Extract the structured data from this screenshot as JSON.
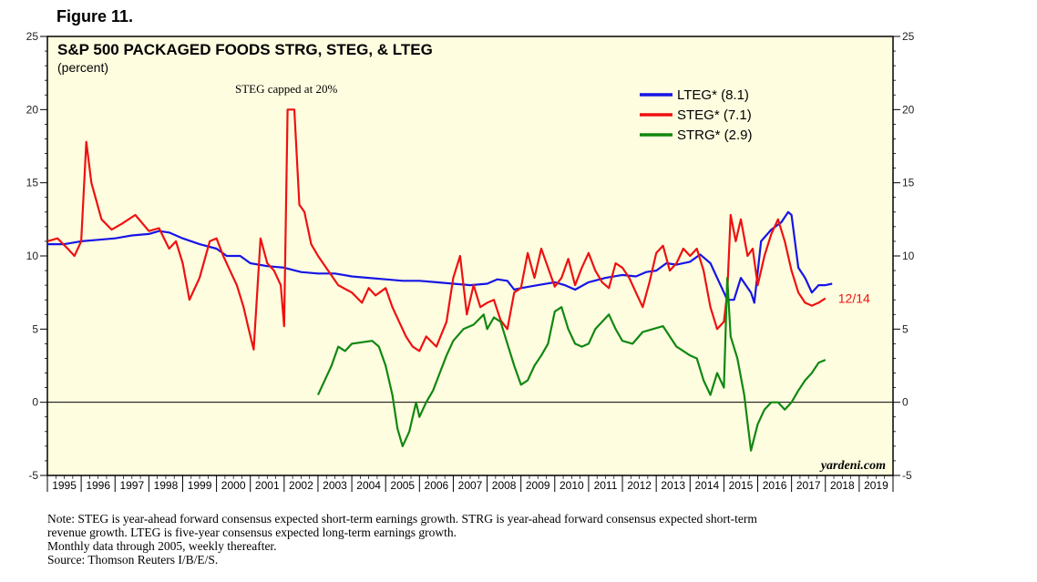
{
  "figure_label": "Figure 11.",
  "notes": [
    "Note: STEG is year-ahead forward consensus expected short-term earnings growth. STRG is year-ahead forward consensus expected short-term",
    "revenue growth. LTEG is five-year consensus expected long-term earnings growth.",
    "Monthly data through 2005, weekly thereafter.",
    "Source: Thomson Reuters I/B/E/S."
  ],
  "chart_data": {
    "type": "line",
    "title": "S&P 500 PACKAGED FOODS STRG, STEG, & LTEG",
    "subtitle": "(percent)",
    "annotation": "STEG capped at 20%",
    "watermark": "yardeni.com",
    "end_label": "12/14",
    "ylim": [
      -5,
      25
    ],
    "yticks": [
      -5,
      0,
      5,
      10,
      15,
      20,
      25
    ],
    "xlim": [
      1995,
      2020
    ],
    "xtick_labels": [
      "1995",
      "1996",
      "1997",
      "1998",
      "1999",
      "2000",
      "2001",
      "2002",
      "2003",
      "2004",
      "2005",
      "2006",
      "2007",
      "2008",
      "2009",
      "2010",
      "2011",
      "2012",
      "2013",
      "2014",
      "2015",
      "2016",
      "2017",
      "2018",
      "2019"
    ],
    "legend_position": "top-right",
    "colors": {
      "lteg": "#1515e6",
      "steg": "#ee1111",
      "strg": "#118811",
      "background": "#fffde0"
    },
    "series": [
      {
        "key": "lteg",
        "name": "LTEG* (8.1)",
        "color": "#1515e6",
        "points": [
          [
            1995.0,
            10.8
          ],
          [
            1995.5,
            10.8
          ],
          [
            1996.0,
            11.0
          ],
          [
            1996.5,
            11.1
          ],
          [
            1997.0,
            11.2
          ],
          [
            1997.5,
            11.4
          ],
          [
            1998.0,
            11.5
          ],
          [
            1998.3,
            11.7
          ],
          [
            1998.6,
            11.6
          ],
          [
            1999.0,
            11.2
          ],
          [
            1999.5,
            10.8
          ],
          [
            2000.0,
            10.5
          ],
          [
            2000.3,
            10.0
          ],
          [
            2000.7,
            10.0
          ],
          [
            2001.0,
            9.5
          ],
          [
            2001.5,
            9.3
          ],
          [
            2002.0,
            9.2
          ],
          [
            2002.5,
            8.9
          ],
          [
            2003.0,
            8.8
          ],
          [
            2003.5,
            8.8
          ],
          [
            2004.0,
            8.6
          ],
          [
            2004.5,
            8.5
          ],
          [
            2005.0,
            8.4
          ],
          [
            2005.5,
            8.3
          ],
          [
            2006.0,
            8.3
          ],
          [
            2006.5,
            8.2
          ],
          [
            2007.0,
            8.1
          ],
          [
            2007.5,
            8.0
          ],
          [
            2008.0,
            8.1
          ],
          [
            2008.3,
            8.4
          ],
          [
            2008.6,
            8.3
          ],
          [
            2008.8,
            7.7
          ],
          [
            2009.0,
            7.8
          ],
          [
            2009.5,
            8.0
          ],
          [
            2010.0,
            8.2
          ],
          [
            2010.3,
            8.0
          ],
          [
            2010.6,
            7.7
          ],
          [
            2011.0,
            8.2
          ],
          [
            2011.5,
            8.5
          ],
          [
            2012.0,
            8.7
          ],
          [
            2012.4,
            8.6
          ],
          [
            2012.7,
            8.9
          ],
          [
            2013.0,
            9.0
          ],
          [
            2013.3,
            9.5
          ],
          [
            2013.6,
            9.4
          ],
          [
            2014.0,
            9.6
          ],
          [
            2014.3,
            10.1
          ],
          [
            2014.6,
            9.5
          ],
          [
            2014.9,
            8.0
          ],
          [
            2015.1,
            7.0
          ],
          [
            2015.3,
            7.0
          ],
          [
            2015.5,
            8.5
          ],
          [
            2015.8,
            7.5
          ],
          [
            2015.9,
            6.8
          ],
          [
            2016.1,
            11.0
          ],
          [
            2016.4,
            11.8
          ],
          [
            2016.7,
            12.3
          ],
          [
            2016.9,
            13.0
          ],
          [
            2017.0,
            12.8
          ],
          [
            2017.2,
            9.2
          ],
          [
            2017.4,
            8.5
          ],
          [
            2017.6,
            7.5
          ],
          [
            2017.8,
            8.0
          ],
          [
            2018.0,
            8.0
          ],
          [
            2018.2,
            8.1
          ]
        ]
      },
      {
        "key": "steg",
        "name": "STEG* (7.1)",
        "color": "#ee1111",
        "points": [
          [
            1995.0,
            11.0
          ],
          [
            1995.3,
            11.2
          ],
          [
            1995.6,
            10.5
          ],
          [
            1995.8,
            10.0
          ],
          [
            1996.0,
            11.0
          ],
          [
            1996.15,
            17.8
          ],
          [
            1996.3,
            15.0
          ],
          [
            1996.6,
            12.5
          ],
          [
            1996.9,
            11.8
          ],
          [
            1997.2,
            12.2
          ],
          [
            1997.6,
            12.8
          ],
          [
            1998.0,
            11.7
          ],
          [
            1998.3,
            11.9
          ],
          [
            1998.6,
            10.5
          ],
          [
            1998.8,
            11.0
          ],
          [
            1999.0,
            9.5
          ],
          [
            1999.2,
            7.0
          ],
          [
            1999.5,
            8.5
          ],
          [
            1999.8,
            11.0
          ],
          [
            2000.0,
            11.2
          ],
          [
            2000.2,
            10.0
          ],
          [
            2000.4,
            9.0
          ],
          [
            2000.6,
            8.0
          ],
          [
            2000.8,
            6.5
          ],
          [
            2000.95,
            5.0
          ],
          [
            2001.1,
            3.6
          ],
          [
            2001.3,
            11.2
          ],
          [
            2001.5,
            9.5
          ],
          [
            2001.7,
            9.0
          ],
          [
            2001.9,
            8.0
          ],
          [
            2002.0,
            5.2
          ],
          [
            2002.1,
            20.0
          ],
          [
            2002.3,
            20.0
          ],
          [
            2002.45,
            13.5
          ],
          [
            2002.6,
            13.0
          ],
          [
            2002.8,
            10.8
          ],
          [
            2003.0,
            10.0
          ],
          [
            2003.3,
            9.0
          ],
          [
            2003.6,
            8.0
          ],
          [
            2004.0,
            7.5
          ],
          [
            2004.3,
            6.8
          ],
          [
            2004.5,
            7.8
          ],
          [
            2004.7,
            7.3
          ],
          [
            2005.0,
            7.8
          ],
          [
            2005.2,
            6.5
          ],
          [
            2005.4,
            5.5
          ],
          [
            2005.6,
            4.5
          ],
          [
            2005.8,
            3.8
          ],
          [
            2006.0,
            3.5
          ],
          [
            2006.2,
            4.5
          ],
          [
            2006.5,
            3.8
          ],
          [
            2006.8,
            5.5
          ],
          [
            2007.0,
            8.5
          ],
          [
            2007.2,
            10.0
          ],
          [
            2007.4,
            6.0
          ],
          [
            2007.6,
            8.0
          ],
          [
            2007.8,
            6.5
          ],
          [
            2008.0,
            6.8
          ],
          [
            2008.2,
            7.0
          ],
          [
            2008.4,
            5.6
          ],
          [
            2008.6,
            5.0
          ],
          [
            2008.8,
            7.5
          ],
          [
            2009.0,
            7.8
          ],
          [
            2009.2,
            10.2
          ],
          [
            2009.4,
            8.5
          ],
          [
            2009.6,
            10.5
          ],
          [
            2009.8,
            9.2
          ],
          [
            2010.0,
            7.9
          ],
          [
            2010.2,
            8.5
          ],
          [
            2010.4,
            9.8
          ],
          [
            2010.6,
            8.0
          ],
          [
            2010.8,
            9.2
          ],
          [
            2011.0,
            10.2
          ],
          [
            2011.2,
            9.0
          ],
          [
            2011.4,
            8.2
          ],
          [
            2011.6,
            7.8
          ],
          [
            2011.8,
            9.5
          ],
          [
            2012.0,
            9.2
          ],
          [
            2012.2,
            8.5
          ],
          [
            2012.4,
            7.5
          ],
          [
            2012.6,
            6.5
          ],
          [
            2012.8,
            8.2
          ],
          [
            2013.0,
            10.2
          ],
          [
            2013.2,
            10.7
          ],
          [
            2013.4,
            9.0
          ],
          [
            2013.6,
            9.5
          ],
          [
            2013.8,
            10.5
          ],
          [
            2014.0,
            10.0
          ],
          [
            2014.2,
            10.5
          ],
          [
            2014.4,
            9.0
          ],
          [
            2014.6,
            6.5
          ],
          [
            2014.8,
            5.0
          ],
          [
            2015.0,
            5.5
          ],
          [
            2015.1,
            7.5
          ],
          [
            2015.2,
            12.8
          ],
          [
            2015.35,
            11.0
          ],
          [
            2015.5,
            12.5
          ],
          [
            2015.7,
            10.0
          ],
          [
            2015.85,
            10.5
          ],
          [
            2016.0,
            8.0
          ],
          [
            2016.2,
            10.0
          ],
          [
            2016.4,
            11.5
          ],
          [
            2016.6,
            12.5
          ],
          [
            2016.8,
            11.0
          ],
          [
            2017.0,
            9.0
          ],
          [
            2017.2,
            7.5
          ],
          [
            2017.4,
            6.8
          ],
          [
            2017.6,
            6.6
          ],
          [
            2017.8,
            6.8
          ],
          [
            2018.0,
            7.1
          ]
        ]
      },
      {
        "key": "strg",
        "name": "STRG* (2.9)",
        "color": "#118811",
        "points": [
          [
            2003.0,
            0.5
          ],
          [
            2003.2,
            1.5
          ],
          [
            2003.4,
            2.5
          ],
          [
            2003.6,
            3.8
          ],
          [
            2003.8,
            3.5
          ],
          [
            2004.0,
            4.0
          ],
          [
            2004.3,
            4.1
          ],
          [
            2004.6,
            4.2
          ],
          [
            2004.8,
            3.8
          ],
          [
            2005.0,
            2.5
          ],
          [
            2005.2,
            0.5
          ],
          [
            2005.35,
            -1.8
          ],
          [
            2005.5,
            -3.0
          ],
          [
            2005.7,
            -2.0
          ],
          [
            2005.9,
            0.0
          ],
          [
            2006.0,
            -1.0
          ],
          [
            2006.2,
            0.0
          ],
          [
            2006.4,
            0.8
          ],
          [
            2006.6,
            2.0
          ],
          [
            2006.8,
            3.2
          ],
          [
            2007.0,
            4.2
          ],
          [
            2007.3,
            5.0
          ],
          [
            2007.6,
            5.3
          ],
          [
            2007.9,
            6.0
          ],
          [
            2008.0,
            5.0
          ],
          [
            2008.2,
            5.8
          ],
          [
            2008.4,
            5.5
          ],
          [
            2008.6,
            4.0
          ],
          [
            2008.8,
            2.5
          ],
          [
            2009.0,
            1.2
          ],
          [
            2009.2,
            1.5
          ],
          [
            2009.4,
            2.5
          ],
          [
            2009.6,
            3.2
          ],
          [
            2009.8,
            4.0
          ],
          [
            2010.0,
            6.2
          ],
          [
            2010.2,
            6.5
          ],
          [
            2010.4,
            5.0
          ],
          [
            2010.6,
            4.0
          ],
          [
            2010.8,
            3.8
          ],
          [
            2011.0,
            4.0
          ],
          [
            2011.2,
            5.0
          ],
          [
            2011.4,
            5.5
          ],
          [
            2011.6,
            6.0
          ],
          [
            2011.8,
            5.0
          ],
          [
            2012.0,
            4.2
          ],
          [
            2012.3,
            4.0
          ],
          [
            2012.6,
            4.8
          ],
          [
            2012.9,
            5.0
          ],
          [
            2013.2,
            5.2
          ],
          [
            2013.4,
            4.5
          ],
          [
            2013.6,
            3.8
          ],
          [
            2013.8,
            3.5
          ],
          [
            2014.0,
            3.2
          ],
          [
            2014.2,
            3.0
          ],
          [
            2014.4,
            1.5
          ],
          [
            2014.6,
            0.5
          ],
          [
            2014.8,
            2.0
          ],
          [
            2015.0,
            1.0
          ],
          [
            2015.1,
            8.5
          ],
          [
            2015.2,
            4.5
          ],
          [
            2015.4,
            3.0
          ],
          [
            2015.6,
            0.5
          ],
          [
            2015.8,
            -3.3
          ],
          [
            2016.0,
            -1.5
          ],
          [
            2016.2,
            -0.5
          ],
          [
            2016.4,
            0.0
          ],
          [
            2016.6,
            0.0
          ],
          [
            2016.8,
            -0.5
          ],
          [
            2017.0,
            0.0
          ],
          [
            2017.2,
            0.8
          ],
          [
            2017.4,
            1.5
          ],
          [
            2017.6,
            2.0
          ],
          [
            2017.8,
            2.7
          ],
          [
            2018.0,
            2.9
          ]
        ]
      }
    ]
  }
}
